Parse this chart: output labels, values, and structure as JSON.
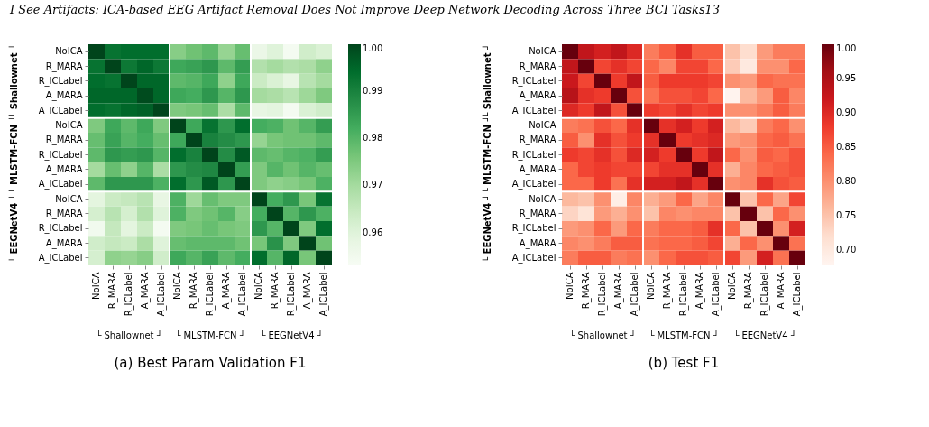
{
  "chart_data": [
    {
      "type": "heatmap",
      "title": "(a) Best Param Validation F1",
      "annotations": [
        "└ Shallownet ┘",
        "└ MLSTM-FCN ┘",
        "└ EEGNetV4 ┘",
        "I See Artifacts: ICA-based EEG Artifact Removal Does Not Improve Deep Network Decoding Across Three BCI Tasks13"
      ],
      "categories": [
        "NoICA",
        "R_MARA",
        "R_ICLabel",
        "A_MARA",
        "A_ICLabel",
        "NoICA",
        "R_MARA",
        "R_ICLabel",
        "A_MARA",
        "A_ICLabel",
        "NoICA",
        "R_MARA",
        "R_ICLabel",
        "A_MARA",
        "A_ICLabel"
      ],
      "y_categories": [
        "NoICA",
        "R_MARA",
        "R_ICLabel",
        "A_MARA",
        "A_ICLabel",
        "NoICA",
        "R_MARA",
        "R_ICLabel",
        "A_MARA",
        "A_ICLabel",
        "NoICA",
        "R_MARA",
        "R_ICLabel",
        "A_MARA",
        "A_ICLabel"
      ],
      "cells": [
        [
          1.0,
          0.993,
          0.994,
          0.994,
          0.994,
          0.974,
          0.977,
          0.979,
          0.972,
          0.978,
          0.957,
          0.96,
          0.954,
          0.963,
          0.961
        ],
        [
          0.993,
          1.0,
          0.992,
          0.995,
          0.992,
          0.983,
          0.984,
          0.986,
          0.979,
          0.985,
          0.968,
          0.97,
          0.968,
          0.969,
          0.973
        ],
        [
          0.994,
          0.993,
          1.0,
          0.995,
          0.995,
          0.979,
          0.98,
          0.983,
          0.973,
          0.983,
          0.964,
          0.961,
          0.958,
          0.967,
          0.97
        ],
        [
          0.995,
          0.995,
          0.995,
          0.999,
          0.995,
          0.983,
          0.982,
          0.986,
          0.98,
          0.986,
          0.97,
          0.969,
          0.967,
          0.971,
          0.975
        ],
        [
          0.994,
          0.993,
          0.995,
          0.996,
          1.0,
          0.975,
          0.976,
          0.978,
          0.969,
          0.979,
          0.958,
          0.959,
          0.954,
          0.961,
          0.963
        ],
        [
          0.975,
          0.983,
          0.979,
          0.983,
          0.975,
          1.0,
          0.983,
          0.993,
          0.986,
          0.994,
          0.982,
          0.981,
          0.977,
          0.98,
          0.985
        ],
        [
          0.978,
          0.984,
          0.98,
          0.982,
          0.978,
          0.983,
          1.0,
          0.99,
          0.988,
          0.986,
          0.972,
          0.976,
          0.977,
          0.977,
          0.979
        ],
        [
          0.979,
          0.986,
          0.985,
          0.986,
          0.98,
          0.994,
          0.99,
          1.0,
          0.988,
          0.997,
          0.979,
          0.978,
          0.98,
          0.981,
          0.985
        ],
        [
          0.97,
          0.978,
          0.973,
          0.98,
          0.969,
          0.986,
          0.988,
          0.989,
          1.0,
          0.985,
          0.975,
          0.98,
          0.977,
          0.98,
          0.978
        ],
        [
          0.979,
          0.986,
          0.986,
          0.986,
          0.981,
          0.994,
          0.986,
          0.997,
          0.986,
          1.0,
          0.975,
          0.973,
          0.974,
          0.976,
          0.981
        ],
        [
          0.959,
          0.964,
          0.965,
          0.967,
          0.958,
          0.981,
          0.971,
          0.978,
          0.975,
          0.975,
          1.0,
          0.982,
          0.986,
          0.976,
          0.993
        ],
        [
          0.962,
          0.967,
          0.962,
          0.968,
          0.96,
          0.981,
          0.975,
          0.977,
          0.98,
          0.974,
          0.982,
          1.0,
          0.98,
          0.986,
          0.981
        ],
        [
          0.955,
          0.965,
          0.959,
          0.964,
          0.954,
          0.975,
          0.976,
          0.978,
          0.976,
          0.975,
          0.986,
          0.98,
          1.0,
          0.975,
          0.994
        ],
        [
          0.963,
          0.965,
          0.964,
          0.969,
          0.96,
          0.978,
          0.979,
          0.979,
          0.979,
          0.977,
          0.976,
          0.987,
          0.975,
          1.0,
          0.977
        ],
        [
          0.962,
          0.973,
          0.972,
          0.974,
          0.963,
          0.983,
          0.98,
          0.984,
          0.979,
          0.982,
          0.994,
          0.98,
          0.995,
          0.976,
          1.0
        ]
      ],
      "clim": [
        0.953,
        1.0
      ],
      "cticks": [
        0.96,
        0.97,
        0.98,
        0.99,
        {
          "value": 1.0,
          "label": "1.00"
        }
      ]
    },
    {
      "type": "heatmap",
      "title": "(b) Test F1",
      "annotations": [
        "└ Shallownet ┘",
        "└ MLSTM-FCN ┘",
        "└ EEGNetV4 ┘"
      ],
      "categories": [
        "NoICA",
        "R_MARA",
        "R_ICLabel",
        "A_MARA",
        "A_ICLabel",
        "NoICA",
        "R_MARA",
        "R_ICLabel",
        "A_MARA",
        "A_ICLabel",
        "NoICA",
        "R_MARA",
        "R_ICLabel",
        "A_MARA",
        "A_ICLabel"
      ],
      "y_categories": [
        "NoICA",
        "R_MARA",
        "R_ICLabel",
        "A_MARA",
        "A_ICLabel",
        "NoICA",
        "R_MARA",
        "R_ICLabel",
        "A_MARA",
        "A_ICLabel",
        "NoICA",
        "R_MARA",
        "R_ICLabel",
        "A_MARA",
        "A_ICLabel"
      ],
      "cells": [
        [
          1.0,
          0.93,
          0.91,
          0.93,
          0.9,
          0.82,
          0.85,
          0.89,
          0.85,
          0.85,
          0.75,
          0.72,
          0.79,
          0.82,
          0.82
        ],
        [
          0.93,
          1.0,
          0.87,
          0.89,
          0.87,
          0.84,
          0.81,
          0.87,
          0.87,
          0.84,
          0.74,
          0.7,
          0.8,
          0.8,
          0.84
        ],
        [
          0.92,
          0.87,
          1.0,
          0.88,
          0.93,
          0.85,
          0.88,
          0.88,
          0.88,
          0.87,
          0.8,
          0.79,
          0.84,
          0.83,
          0.83
        ],
        [
          0.94,
          0.89,
          0.88,
          1.0,
          0.86,
          0.83,
          0.86,
          0.86,
          0.87,
          0.84,
          0.68,
          0.76,
          0.79,
          0.85,
          0.81
        ],
        [
          0.9,
          0.88,
          0.93,
          0.86,
          1.0,
          0.88,
          0.87,
          0.89,
          0.87,
          0.88,
          0.8,
          0.8,
          0.82,
          0.85,
          0.82
        ],
        [
          0.82,
          0.83,
          0.86,
          0.84,
          0.89,
          1.0,
          0.89,
          0.91,
          0.88,
          0.91,
          0.76,
          0.74,
          0.82,
          0.84,
          0.8
        ],
        [
          0.85,
          0.8,
          0.89,
          0.86,
          0.88,
          0.89,
          1.0,
          0.88,
          0.89,
          0.9,
          0.79,
          0.8,
          0.84,
          0.85,
          0.83
        ],
        [
          0.88,
          0.87,
          0.89,
          0.86,
          0.9,
          0.91,
          0.88,
          1.0,
          0.88,
          0.93,
          0.84,
          0.8,
          0.85,
          0.84,
          0.86
        ],
        [
          0.84,
          0.87,
          0.88,
          0.87,
          0.87,
          0.87,
          0.89,
          0.89,
          1.0,
          0.89,
          0.77,
          0.81,
          0.84,
          0.85,
          0.86
        ],
        [
          0.84,
          0.84,
          0.88,
          0.83,
          0.89,
          0.91,
          0.91,
          0.93,
          0.89,
          1.0,
          0.8,
          0.81,
          0.89,
          0.86,
          0.85
        ],
        [
          0.76,
          0.75,
          0.8,
          0.69,
          0.81,
          0.77,
          0.79,
          0.84,
          0.78,
          0.81,
          1.0,
          0.75,
          0.84,
          0.78,
          0.87
        ],
        [
          0.73,
          0.71,
          0.79,
          0.77,
          0.8,
          0.75,
          0.81,
          0.8,
          0.81,
          0.81,
          0.75,
          1.0,
          0.75,
          0.84,
          0.8
        ],
        [
          0.79,
          0.8,
          0.84,
          0.79,
          0.84,
          0.82,
          0.84,
          0.84,
          0.85,
          0.89,
          0.84,
          0.75,
          1.0,
          0.8,
          0.91
        ],
        [
          0.81,
          0.8,
          0.82,
          0.85,
          0.85,
          0.83,
          0.84,
          0.84,
          0.85,
          0.87,
          0.77,
          0.84,
          0.8,
          1.0,
          0.83
        ],
        [
          0.82,
          0.85,
          0.85,
          0.82,
          0.83,
          0.8,
          0.84,
          0.86,
          0.86,
          0.85,
          0.87,
          0.79,
          0.91,
          0.83,
          1.0
        ]
      ],
      "clim": [
        0.677,
        1.0
      ],
      "cticks": [
        {
          "value": 0.7,
          "label": "0.70"
        },
        0.75,
        {
          "value": 0.8,
          "label": "0.80"
        },
        0.85,
        {
          "value": 0.9,
          "label": "0.90"
        },
        0.95,
        {
          "value": 1.0,
          "label": "1.00"
        }
      ]
    }
  ]
}
